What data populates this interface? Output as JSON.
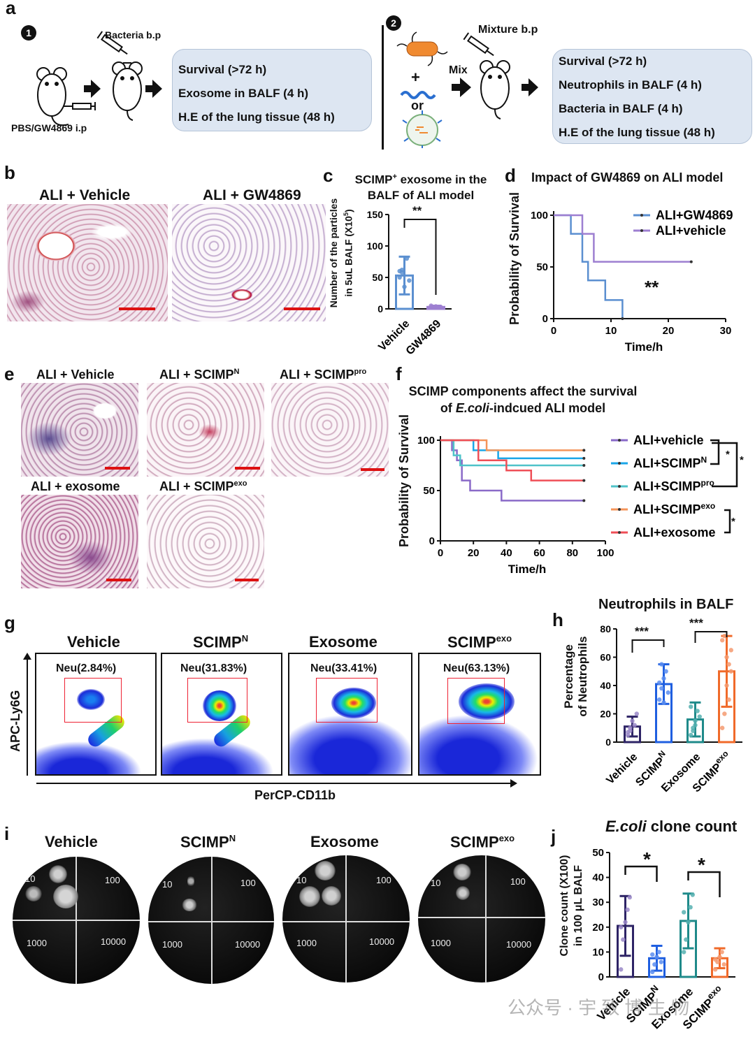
{
  "panel_labels": {
    "a": "a",
    "b": "b",
    "c": "c",
    "d": "d",
    "e": "e",
    "f": "f",
    "g": "g",
    "h": "h",
    "i": "i",
    "j": "j"
  },
  "panel_a": {
    "step1": "1",
    "step2": "2",
    "bacteria_bp": "Bacteria b.p",
    "pbs_ip": "PBS/GW4869 i.p",
    "box1": [
      "Survival (>72 h)",
      "Exosome in BALF (4 h)",
      "H.E of the lung tissue (48 h)"
    ],
    "plus": "+",
    "or": "or",
    "mix": "Mix",
    "mixture_bp": "Mixture b.p",
    "box2": [
      "Survival (>72 h)",
      "Neutrophils in BALF (4 h)",
      "Bacteria in BALF (4 h)",
      "H.E of the lung tissue (48 h)"
    ]
  },
  "panel_b": {
    "left_title": "ALI + Vehicle",
    "right_title": "ALI + GW4869"
  },
  "panel_c": {
    "title_line1_a": "SCIMP",
    "title_line1_sup": "+",
    "title_line1_b": " exosome in the",
    "title_line2": "BALF of ALI model",
    "ylabel_line1": "Number of the particles",
    "ylabel_line2_a": "in 5uL BALF (X10",
    "ylabel_line2_sup": "5",
    "ylabel_line2_b": ")",
    "significance": "**"
  },
  "panel_d": {
    "title": "Impact of GW4869 on ALI model",
    "significance": "**"
  },
  "panel_e": {
    "titles": [
      {
        "text": "ALI + Vehicle",
        "sup": ""
      },
      {
        "text": "ALI + SCIMP",
        "sup": "N"
      },
      {
        "text": "ALI + SCIMP",
        "sup": "pro"
      },
      {
        "text": "ALI + exosome",
        "sup": ""
      },
      {
        "text": "ALI + SCIMP",
        "sup": "exo"
      }
    ]
  },
  "panel_f": {
    "title_line1": "SCIMP components affect the survival",
    "title_line2_a": "of ",
    "title_line2_italic": "E.coli",
    "title_line2_b": "-indcued ALI model",
    "sig1": "*",
    "sig2": "*",
    "sig3": "*"
  },
  "panel_g": {
    "columns": [
      {
        "title": "Vehicle",
        "sup": "",
        "gate": "Neu(2.84%)"
      },
      {
        "title": "SCIMP",
        "sup": "N",
        "gate": "Neu(31.83%)"
      },
      {
        "title": "Exosome",
        "sup": "",
        "gate": "Neu(33.41%)"
      },
      {
        "title": "SCIMP",
        "sup": "exo",
        "gate": "Neu(63.13%)"
      }
    ],
    "ylabel": "APC-Ly6G",
    "xlabel": "PerCP-CD11b"
  },
  "panel_h": {
    "title": "Neutrophils in BALF",
    "ylabel_line1": "Percentage",
    "ylabel_line2": "of Neutrophils",
    "sig1": "***",
    "sig2": "***"
  },
  "panel_i": {
    "columns": [
      {
        "title": "Vehicle",
        "sup": ""
      },
      {
        "title": "SCIMP",
        "sup": "N"
      },
      {
        "title": "Exosome",
        "sup": ""
      },
      {
        "title": "SCIMP",
        "sup": "exo"
      }
    ],
    "dilutions": [
      "10",
      "100",
      "1000",
      "10000"
    ]
  },
  "panel_j": {
    "title_italic": "E.coli",
    "title_rest": " clone count",
    "ylabel_line1": "Clone count (X100)",
    "ylabel_line2": "in 100 μL BALF",
    "sig1": "*",
    "sig2": "*"
  },
  "watermark": "公众号 · 宇 致 博 生 物",
  "colors": {
    "vehicle_purple": "#2e2466",
    "scimpN_blue": "#1f5fe0",
    "exosome_teal": "#1f8a8a",
    "scimpExo_orange": "#f06a2a",
    "gw4869_blue": "#5b8fd0",
    "vehicle_light_purple": "#9d7fd1",
    "f_vehicle": "#8a6ac8",
    "f_scimpN": "#1aa6e8",
    "f_scimpPro": "#4fc3c9",
    "f_scimpExo": "#f4955a",
    "f_exosome": "#ef4f57"
  },
  "chart_data": [
    {
      "id": "c",
      "type": "bar",
      "categories": [
        "Vehicle",
        "GW4869"
      ],
      "values": [
        53,
        3
      ],
      "errors": [
        30,
        2
      ],
      "ylim": [
        0,
        150
      ],
      "yticks": [
        0,
        50,
        100,
        150
      ],
      "points": [
        [
          60,
          58,
          35,
          80,
          45,
          50,
          62
        ],
        [
          2,
          3,
          4,
          2,
          3,
          5,
          3
        ]
      ]
    },
    {
      "id": "d",
      "type": "line",
      "xlabel": "Time/h",
      "ylabel": "Probability of Survival",
      "xlim": [
        0,
        30
      ],
      "ylim": [
        0,
        100
      ],
      "xticks": [
        0,
        10,
        20,
        30
      ],
      "yticks": [
        0,
        50,
        100
      ],
      "series": [
        {
          "name": "ALI+GW4869",
          "steps": [
            [
              0,
              100
            ],
            [
              3,
              100
            ],
            [
              3,
              82
            ],
            [
              5,
              82
            ],
            [
              5,
              55
            ],
            [
              6,
              55
            ],
            [
              6,
              37
            ],
            [
              9,
              37
            ],
            [
              9,
              18
            ],
            [
              12,
              18
            ],
            [
              12,
              0
            ]
          ]
        },
        {
          "name": "ALI+vehicle",
          "steps": [
            [
              0,
              100
            ],
            [
              5,
              100
            ],
            [
              5,
              82
            ],
            [
              7,
              82
            ],
            [
              7,
              55
            ],
            [
              24,
              55
            ]
          ]
        }
      ]
    },
    {
      "id": "f",
      "type": "line",
      "xlabel": "Time/h",
      "ylabel": "Probability of Survival",
      "xlim": [
        0,
        100
      ],
      "ylim": [
        0,
        100
      ],
      "xticks": [
        0,
        20,
        40,
        60,
        80,
        100
      ],
      "yticks": [
        0,
        50,
        100
      ],
      "series": [
        {
          "name": "ALI+vehicle",
          "steps": [
            [
              0,
              100
            ],
            [
              7,
              100
            ],
            [
              7,
              90
            ],
            [
              10,
              90
            ],
            [
              10,
              80
            ],
            [
              13,
              80
            ],
            [
              13,
              60
            ],
            [
              18,
              60
            ],
            [
              18,
              50
            ],
            [
              37,
              50
            ],
            [
              37,
              40
            ],
            [
              87,
              40
            ]
          ]
        },
        {
          "name": "ALI+SCIMP",
          "name_sup": "N",
          "steps": [
            [
              0,
              100
            ],
            [
              20,
              100
            ],
            [
              20,
              90
            ],
            [
              35,
              90
            ],
            [
              35,
              82
            ],
            [
              87,
              82
            ]
          ]
        },
        {
          "name": "ALI+SCIMP",
          "name_sup": "pro",
          "steps": [
            [
              0,
              100
            ],
            [
              8,
              100
            ],
            [
              8,
              85
            ],
            [
              12,
              85
            ],
            [
              12,
              75
            ],
            [
              87,
              75
            ]
          ]
        },
        {
          "name": "ALI+SCIMP",
          "name_sup": "exo",
          "steps": [
            [
              0,
              100
            ],
            [
              28,
              100
            ],
            [
              28,
              90
            ],
            [
              87,
              90
            ]
          ]
        },
        {
          "name": "ALI+exosome",
          "steps": [
            [
              0,
              100
            ],
            [
              23,
              100
            ],
            [
              23,
              80
            ],
            [
              40,
              80
            ],
            [
              40,
              70
            ],
            [
              55,
              70
            ],
            [
              55,
              60
            ],
            [
              87,
              60
            ]
          ]
        }
      ]
    },
    {
      "id": "h",
      "type": "bar",
      "categories": [
        "Vehicle",
        "SCIMP^N",
        "Exosome",
        "SCIMP^exo"
      ],
      "values": [
        11,
        41,
        16,
        50
      ],
      "errors": [
        7,
        14,
        12,
        25
      ],
      "ylim": [
        0,
        80
      ],
      "yticks": [
        0,
        20,
        40,
        60,
        80
      ],
      "points": [
        [
          5,
          8,
          15,
          12,
          20,
          7,
          10
        ],
        [
          30,
          38,
          45,
          50,
          35,
          42,
          55,
          28
        ],
        [
          5,
          10,
          15,
          22,
          18,
          25,
          8,
          12
        ],
        [
          10,
          20,
          40,
          55,
          65,
          72,
          75,
          60,
          30,
          50
        ]
      ]
    },
    {
      "id": "j",
      "type": "bar",
      "categories": [
        "Vehicle",
        "SCIMP^N",
        "Exosome",
        "SCIMP^exo"
      ],
      "values": [
        20.5,
        7.5,
        22.5,
        7.5
      ],
      "errors": [
        12,
        5,
        11,
        4
      ],
      "ylim": [
        0,
        50
      ],
      "yticks": [
        0,
        10,
        20,
        30,
        40,
        50
      ],
      "points": [
        [
          3,
          15,
          22,
          27,
          32,
          20
        ],
        [
          2,
          5,
          8,
          10,
          6,
          9
        ],
        [
          10,
          15,
          22,
          28,
          33,
          26
        ],
        [
          3,
          6,
          8,
          10,
          5,
          7
        ]
      ]
    }
  ]
}
